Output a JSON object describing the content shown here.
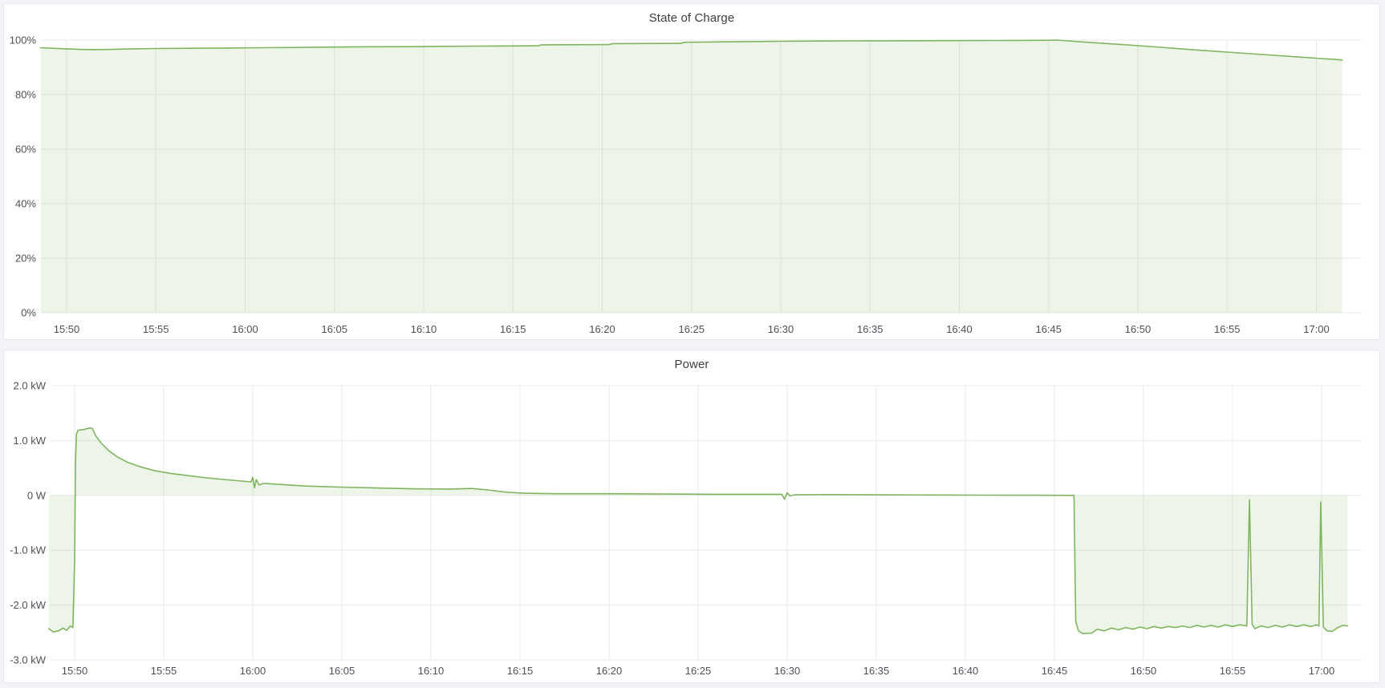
{
  "page": {
    "background": "#f3f4f7",
    "panel_background": "#ffffff",
    "panel_border": "#e3e6ea"
  },
  "chart_data": [
    {
      "type": "area",
      "title": "State of Charge",
      "series_name": "state-of-charge",
      "line_color": "#7fb55f",
      "fill_color": "rgba(127,181,95,0.14)",
      "grid": true,
      "legend": "none",
      "ylim": [
        0,
        100
      ],
      "baseline": 0,
      "y_tick_values": [
        0,
        20,
        40,
        60,
        80,
        100
      ],
      "y_tick_labels": [
        "0%",
        "20%",
        "40%",
        "60%",
        "80%",
        "100%"
      ],
      "x_tick_minutes": [
        2,
        7,
        12,
        17,
        22,
        27,
        32,
        37,
        42,
        47,
        52,
        57,
        62,
        67,
        72
      ],
      "x_tick_labels": [
        "15:50",
        "15:55",
        "16:00",
        "16:05",
        "16:10",
        "16:15",
        "16:20",
        "16:25",
        "16:30",
        "16:35",
        "16:40",
        "16:45",
        "16:50",
        "16:55",
        "17:00"
      ],
      "points": [
        [
          0.55,
          97.2
        ],
        [
          1.2,
          97.0
        ],
        [
          2.0,
          96.8
        ],
        [
          2.8,
          96.6
        ],
        [
          3.6,
          96.5
        ],
        [
          4.5,
          96.6
        ],
        [
          5.5,
          96.75
        ],
        [
          7,
          96.9
        ],
        [
          9,
          97.0
        ],
        [
          11,
          97.1
        ],
        [
          13,
          97.2
        ],
        [
          15,
          97.3
        ],
        [
          17,
          97.45
        ],
        [
          19,
          97.55
        ],
        [
          21,
          97.6
        ],
        [
          23,
          97.7
        ],
        [
          25,
          97.8
        ],
        [
          27,
          97.85
        ],
        [
          28.4,
          97.9
        ],
        [
          28.6,
          98.25
        ],
        [
          30,
          98.3
        ],
        [
          32.4,
          98.35
        ],
        [
          32.6,
          98.7
        ],
        [
          34,
          98.75
        ],
        [
          36.4,
          98.8
        ],
        [
          36.6,
          99.2
        ],
        [
          38,
          99.3
        ],
        [
          40,
          99.45
        ],
        [
          42,
          99.55
        ],
        [
          44,
          99.65
        ],
        [
          46,
          99.7
        ],
        [
          48,
          99.75
        ],
        [
          51,
          99.8
        ],
        [
          54,
          99.85
        ],
        [
          56.5,
          99.9
        ],
        [
          57.4,
          100.0
        ],
        [
          57.8,
          99.85
        ],
        [
          59,
          99.3
        ],
        [
          61,
          98.4
        ],
        [
          63,
          97.5
        ],
        [
          65,
          96.5
        ],
        [
          67,
          95.6
        ],
        [
          69,
          94.7
        ],
        [
          71,
          93.8
        ],
        [
          73,
          92.9
        ],
        [
          73.45,
          92.7
        ]
      ]
    },
    {
      "type": "area",
      "title": "Power",
      "series_name": "power",
      "line_color": "#7fb55f",
      "fill_color": "rgba(127,181,95,0.14)",
      "grid": true,
      "legend": "none",
      "ylim": [
        -3,
        2
      ],
      "baseline": 0,
      "y_tick_values": [
        -3,
        -2,
        -1,
        0,
        1,
        2
      ],
      "y_tick_labels": [
        "-3.0 kW",
        "-2.0 kW",
        "-1.0 kW",
        "0 W",
        "1.0 kW",
        "2.0 kW"
      ],
      "x_tick_minutes": [
        2,
        7,
        12,
        17,
        22,
        27,
        32,
        37,
        42,
        47,
        52,
        57,
        62,
        67,
        72
      ],
      "x_tick_labels": [
        "15:50",
        "15:55",
        "16:00",
        "16:05",
        "16:10",
        "16:15",
        "16:20",
        "16:25",
        "16:30",
        "16:35",
        "16:40",
        "16:45",
        "16:50",
        "16:55",
        "17:00"
      ],
      "points": [
        [
          0.55,
          -2.43
        ],
        [
          0.8,
          -2.49
        ],
        [
          1.1,
          -2.47
        ],
        [
          1.35,
          -2.42
        ],
        [
          1.55,
          -2.46
        ],
        [
          1.75,
          -2.38
        ],
        [
          1.9,
          -2.41
        ],
        [
          2.0,
          -1.2
        ],
        [
          2.05,
          0.6
        ],
        [
          2.1,
          1.12
        ],
        [
          2.2,
          1.19
        ],
        [
          2.5,
          1.2
        ],
        [
          2.85,
          1.23
        ],
        [
          3.0,
          1.22
        ],
        [
          3.2,
          1.08
        ],
        [
          3.5,
          0.95
        ],
        [
          3.9,
          0.82
        ],
        [
          4.4,
          0.7
        ],
        [
          5.0,
          0.6
        ],
        [
          5.7,
          0.52
        ],
        [
          6.5,
          0.45
        ],
        [
          7.4,
          0.4
        ],
        [
          8.4,
          0.36
        ],
        [
          9.4,
          0.32
        ],
        [
          10.4,
          0.29
        ],
        [
          11.4,
          0.26
        ],
        [
          11.9,
          0.245
        ],
        [
          12.0,
          0.33
        ],
        [
          12.1,
          0.14
        ],
        [
          12.2,
          0.29
        ],
        [
          12.35,
          0.19
        ],
        [
          12.6,
          0.22
        ],
        [
          13.5,
          0.2
        ],
        [
          15,
          0.17
        ],
        [
          17,
          0.15
        ],
        [
          19,
          0.135
        ],
        [
          21,
          0.12
        ],
        [
          23,
          0.115
        ],
        [
          24.3,
          0.125
        ],
        [
          25.2,
          0.1
        ],
        [
          26.2,
          0.06
        ],
        [
          27.2,
          0.04
        ],
        [
          29,
          0.03
        ],
        [
          32,
          0.03
        ],
        [
          35,
          0.025
        ],
        [
          38,
          0.02
        ],
        [
          41.7,
          0.02
        ],
        [
          41.85,
          -0.07
        ],
        [
          42.0,
          0.05
        ],
        [
          42.15,
          -0.01
        ],
        [
          42.4,
          0.01
        ],
        [
          44,
          0.015
        ],
        [
          47,
          0.01
        ],
        [
          50,
          0.008
        ],
        [
          53,
          0.005
        ],
        [
          56,
          0.003
        ],
        [
          58.1,
          0.0
        ],
        [
          58.2,
          -2.3
        ],
        [
          58.35,
          -2.47
        ],
        [
          58.6,
          -2.52
        ],
        [
          59.1,
          -2.51
        ],
        [
          59.4,
          -2.44
        ],
        [
          59.8,
          -2.47
        ],
        [
          60.2,
          -2.42
        ],
        [
          60.6,
          -2.45
        ],
        [
          61.0,
          -2.41
        ],
        [
          61.4,
          -2.44
        ],
        [
          61.8,
          -2.4
        ],
        [
          62.2,
          -2.43
        ],
        [
          62.6,
          -2.39
        ],
        [
          63.0,
          -2.42
        ],
        [
          63.4,
          -2.39
        ],
        [
          63.8,
          -2.41
        ],
        [
          64.2,
          -2.38
        ],
        [
          64.6,
          -2.41
        ],
        [
          65.0,
          -2.37
        ],
        [
          65.4,
          -2.4
        ],
        [
          65.8,
          -2.37
        ],
        [
          66.2,
          -2.4
        ],
        [
          66.6,
          -2.36
        ],
        [
          67.0,
          -2.39
        ],
        [
          67.4,
          -2.36
        ],
        [
          67.8,
          -2.38
        ],
        [
          67.95,
          -0.08
        ],
        [
          68.1,
          -2.35
        ],
        [
          68.25,
          -2.43
        ],
        [
          68.6,
          -2.38
        ],
        [
          69.0,
          -2.41
        ],
        [
          69.4,
          -2.37
        ],
        [
          69.8,
          -2.4
        ],
        [
          70.2,
          -2.36
        ],
        [
          70.6,
          -2.39
        ],
        [
          71.0,
          -2.36
        ],
        [
          71.4,
          -2.39
        ],
        [
          71.7,
          -2.36
        ],
        [
          71.85,
          -2.38
        ],
        [
          71.95,
          -0.12
        ],
        [
          72.1,
          -2.4
        ],
        [
          72.3,
          -2.47
        ],
        [
          72.6,
          -2.48
        ],
        [
          72.9,
          -2.41
        ],
        [
          73.2,
          -2.37
        ],
        [
          73.45,
          -2.38
        ]
      ]
    }
  ]
}
